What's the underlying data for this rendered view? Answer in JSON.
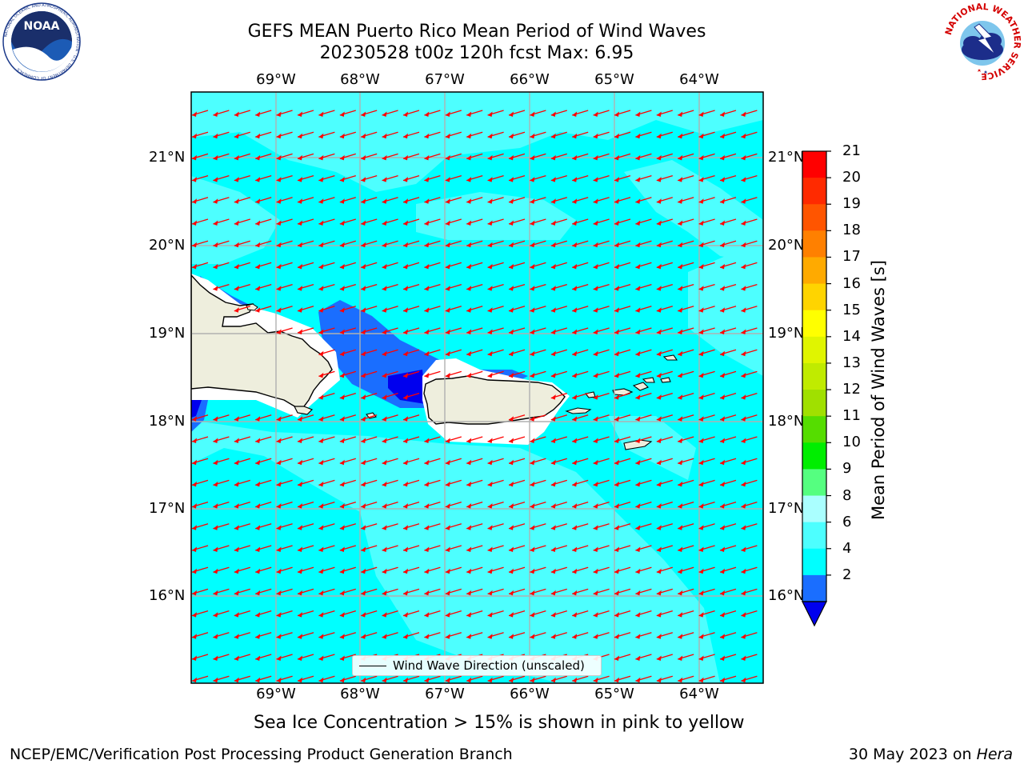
{
  "title": {
    "line1": "GEFS MEAN Puerto Rico Mean Period of Wind Waves",
    "line2": "20230528 t00z 120h fcst   Max: 6.95"
  },
  "logos": {
    "left": {
      "icon": "noaa-logo",
      "ring_text": "NATIONAL OCEANIC AND ATMOSPHERIC ADMINISTRATION · U.S. DEPARTMENT OF COMMERCE",
      "center_text": "NOAA"
    },
    "right": {
      "icon": "national-weather-service-logo",
      "ring_text": "NATIONAL WEATHER SERVICE"
    }
  },
  "map": {
    "lon_labels": [
      "69°W",
      "68°W",
      "67°W",
      "66°W",
      "65°W",
      "64°W"
    ],
    "lat_labels": [
      "21°N",
      "20°N",
      "19°N",
      "18°N",
      "17°N",
      "16°N"
    ],
    "ocean_color": "#00ffff",
    "lighter_color": "#4dffff",
    "low_color": "#1a6eff",
    "lowest_color": "#0000ee",
    "land_color": "#eeeedd",
    "arrow_color": "#ff0000",
    "grid_color": "#b0b0b0",
    "legend": {
      "label": "Wind Wave Direction (unscaled)"
    }
  },
  "colorbar": {
    "title": "Mean Period of Wind Waves [s]",
    "ticks": [
      "21",
      "20",
      "19",
      "18",
      "17",
      "16",
      "15",
      "14",
      "13",
      "12",
      "11",
      "10",
      "9",
      "8",
      "6",
      "4",
      "2"
    ],
    "colors": [
      "#ff0000",
      "#ff2a00",
      "#ff5500",
      "#ff8000",
      "#ffaa00",
      "#ffd400",
      "#ffff00",
      "#e0f500",
      "#c0eb00",
      "#a0e000",
      "#55dd00",
      "#00ee00",
      "#55ff80",
      "#aaffff",
      "#4dffff",
      "#00ffff",
      "#1a6eff"
    ],
    "extend_low_color": "#0000ee"
  },
  "notes": {
    "sea_ice": "Sea Ice Concentration > 15% is shown in pink to yellow"
  },
  "footer": {
    "left": "NCEP/EMC/Verification Post Processing Product Generation Branch",
    "date": "30 May 2023 on ",
    "machine": "Hera"
  }
}
